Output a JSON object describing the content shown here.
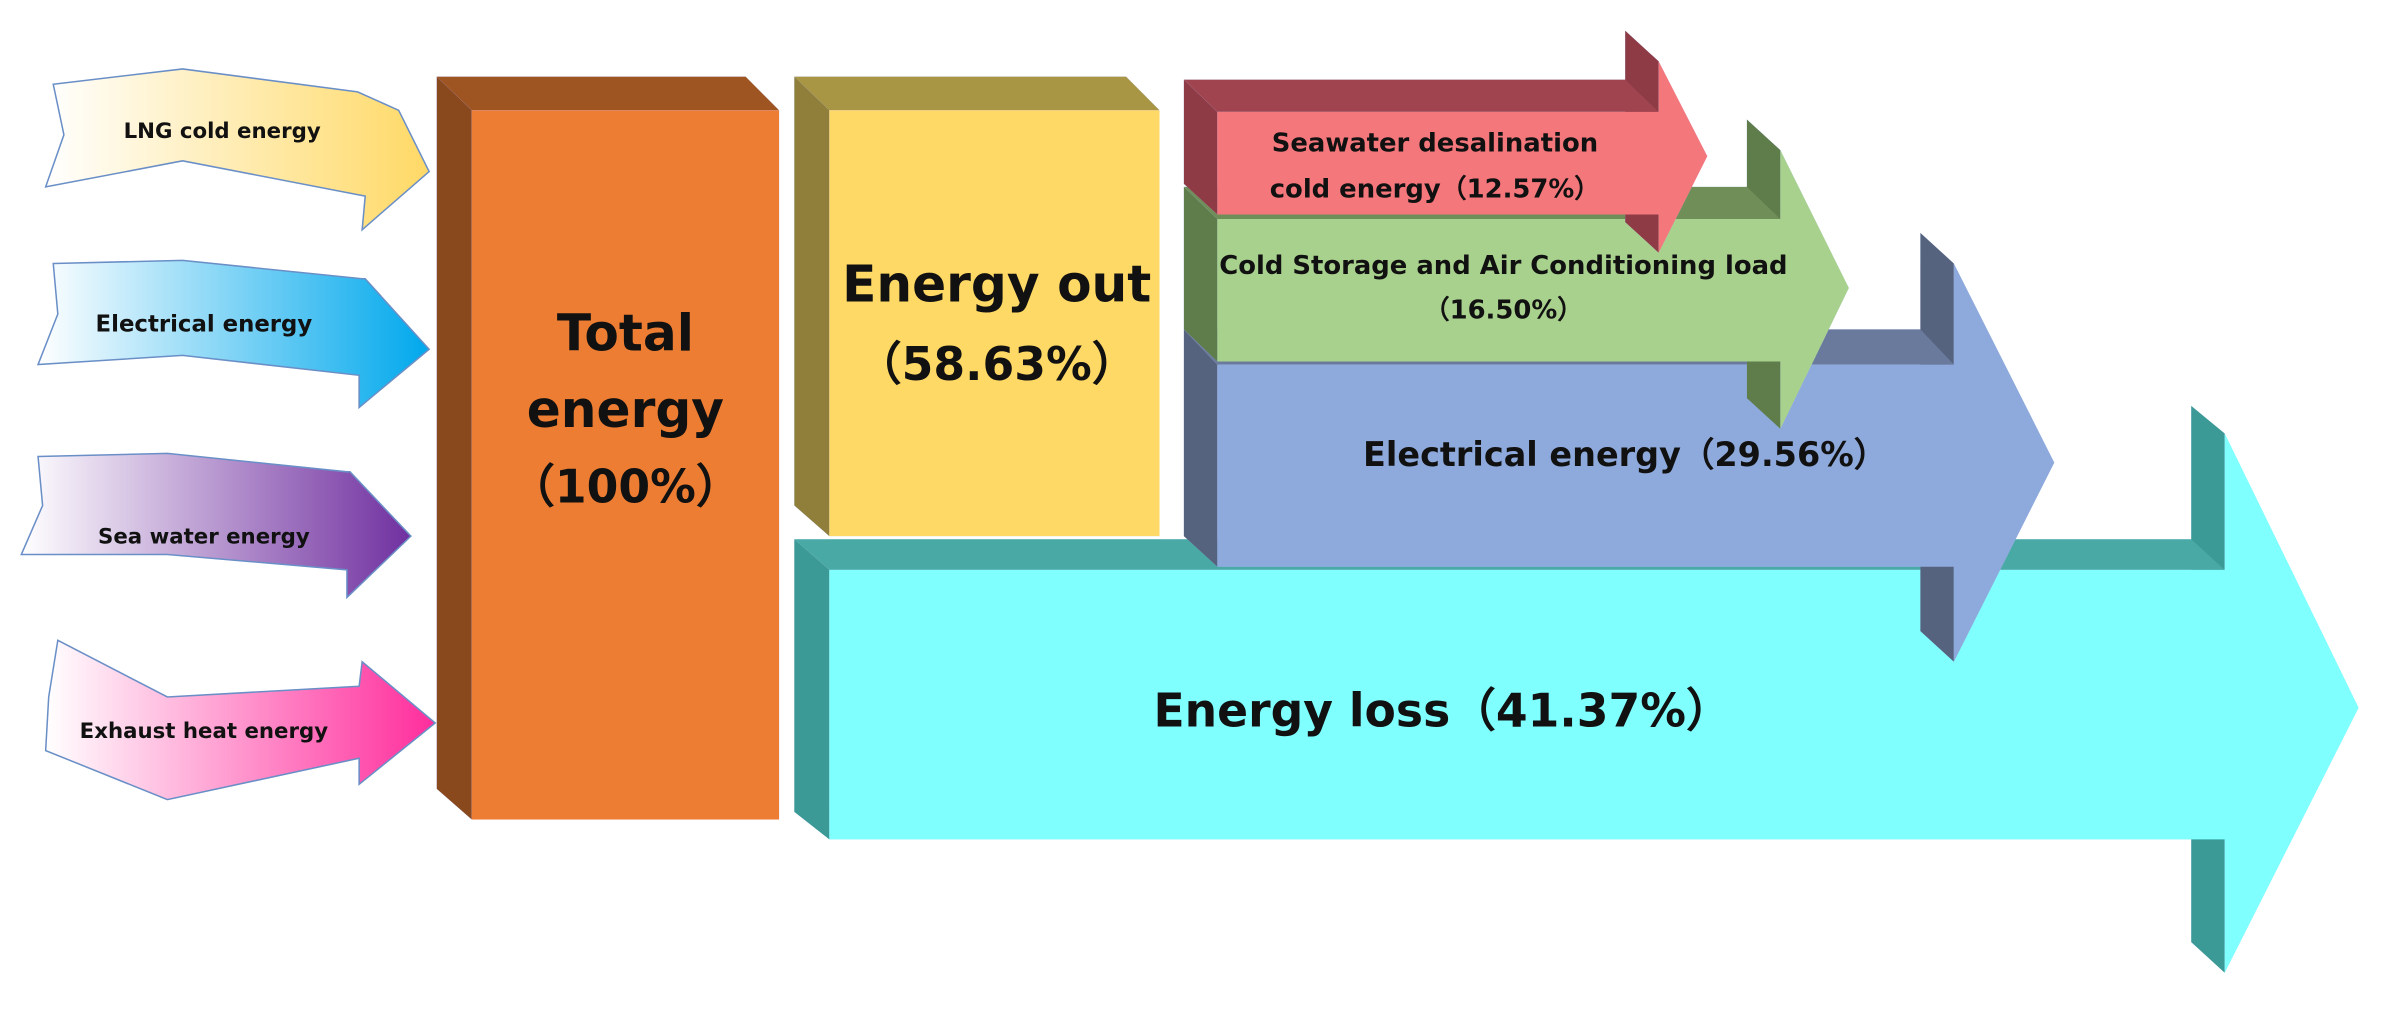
{
  "inputs": [
    {
      "label": "LNG cold energy"
    },
    {
      "label": "Electrical energy"
    },
    {
      "label": "Sea water energy"
    },
    {
      "label": "Exhaust heat energy"
    }
  ],
  "total": {
    "label_lines": [
      "Total",
      "energy"
    ],
    "share": "（100%）"
  },
  "energy_out": {
    "label": "Energy out",
    "share": "（58.63%）"
  },
  "outputs": [
    {
      "lines": [
        "Seawater desalination",
        "cold energy（12.57%）"
      ]
    },
    {
      "lines": [
        "Cold Storage and Air Conditioning load",
        "（16.50%）"
      ]
    },
    {
      "lines": [
        "Electrical energy（29.56%）"
      ]
    }
  ],
  "energy_loss": {
    "label": "Energy loss（41.37%）"
  }
}
